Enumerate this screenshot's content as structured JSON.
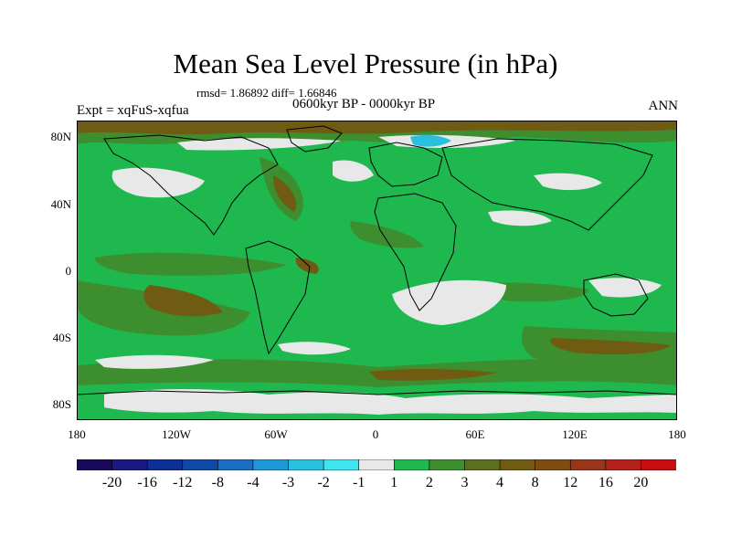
{
  "title": "Mean Sea Level Pressure (in hPa)",
  "stats": "rmsd= 1.86892 diff= 1.66846",
  "experiment": "Expt = xqFuS-xqfua",
  "period": "0600kyr BP - 0000kyr BP",
  "season": "ANN",
  "y_axis_labels": [
    "80N",
    "40N",
    "0",
    "40S",
    "80S"
  ],
  "x_axis_labels": [
    "180",
    "120W",
    "60W",
    "0",
    "60E",
    "120E",
    "180"
  ],
  "colorbar": {
    "colors": [
      "#1a0a5c",
      "#1a1a80",
      "#0d2f96",
      "#1048a8",
      "#1a6cc4",
      "#1f98d6",
      "#29c0e0",
      "#3ee4ee",
      "#e8e8e8",
      "#1fb84f",
      "#3d8e2e",
      "#5c6f1e",
      "#705b12",
      "#7f4d12",
      "#98361a",
      "#b4201a",
      "#c80e0e"
    ],
    "labels": [
      "-20",
      "-16",
      "-12",
      "-8",
      "-4",
      "-3",
      "-2",
      "-1",
      "1",
      "2",
      "3",
      "4",
      "8",
      "12",
      "16",
      "20"
    ]
  },
  "map_colors": {
    "background": "#1fb84f",
    "moderate_increase": "#3d8e2e",
    "strong_increase": "#705b12",
    "near_zero": "#e8e8e8",
    "decrease": "#29c0e0"
  }
}
